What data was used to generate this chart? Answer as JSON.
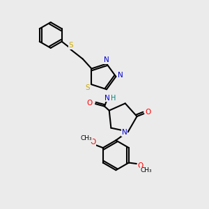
{
  "bg_color": "#ebebeb",
  "bond_color": "#000000",
  "N_color": "#0000cc",
  "O_color": "#ff0000",
  "S_color": "#ccaa00",
  "NH_color": "#008080",
  "lw": 1.5,
  "figsize": [
    3.0,
    3.0
  ],
  "dpi": 100,
  "xlim": [
    0,
    10
  ],
  "ylim": [
    0,
    10
  ]
}
